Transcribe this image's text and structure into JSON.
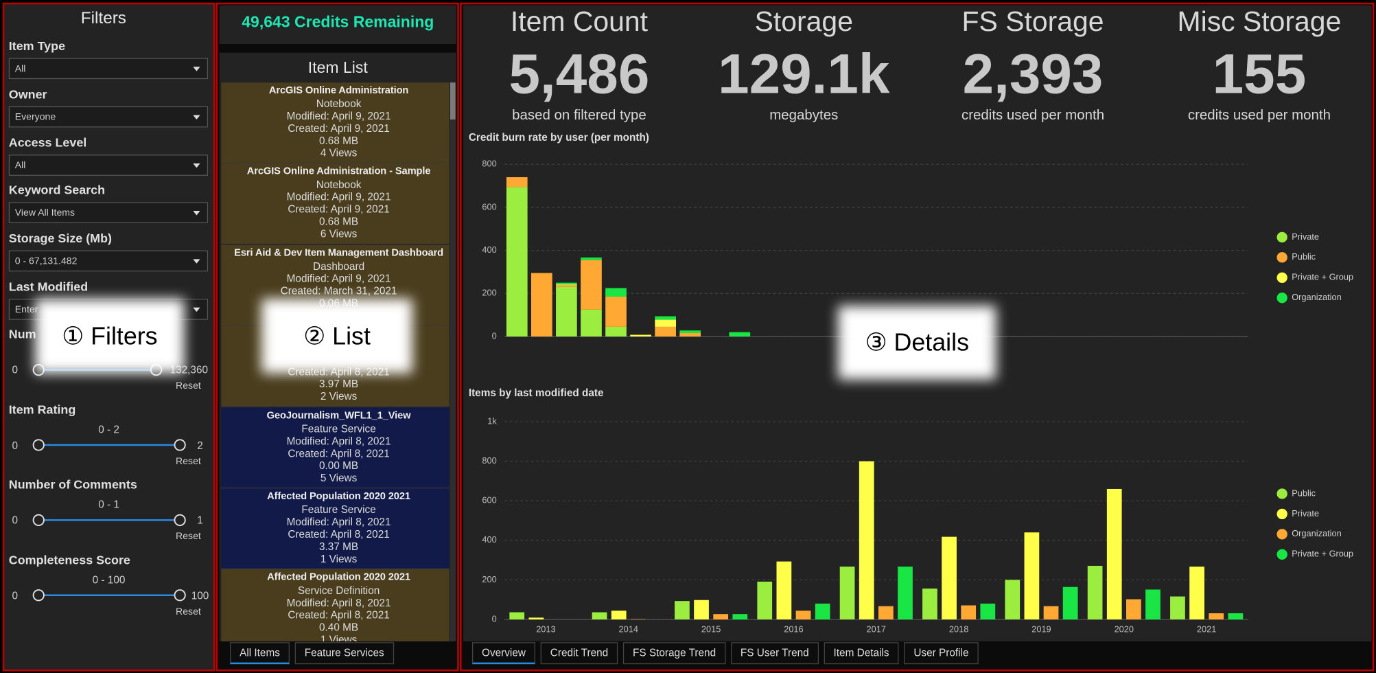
{
  "filters": {
    "title": "Filters",
    "dropdowns": [
      {
        "label": "Item Type",
        "value": "All"
      },
      {
        "label": "Owner",
        "value": "Everyone"
      },
      {
        "label": "Access Level",
        "value": "All"
      },
      {
        "label": "Keyword Search",
        "value": "View All Items"
      },
      {
        "label": "Storage Size (Mb)",
        "value": "0 - 67,131.482"
      },
      {
        "label": "Last Modified",
        "value": "Enter"
      }
    ],
    "sliders": [
      {
        "label": "Num",
        "min": "0",
        "max": "132,360",
        "reset": "Reset"
      },
      {
        "label": "Item Rating",
        "range": "0 - 2",
        "min": "0",
        "max": "2",
        "reset": "Reset"
      },
      {
        "label": "Number of Comments",
        "range": "0 - 1",
        "min": "0",
        "max": "1",
        "reset": "Reset"
      },
      {
        "label": "Completeness Score",
        "range": "0 - 100",
        "min": "0",
        "max": "100",
        "reset": "Reset"
      }
    ]
  },
  "credits": "49,643 Credits Remaining",
  "item_list": {
    "title": "Item List",
    "items": [
      {
        "color": "#4a3d1d",
        "lines": [
          "ArcGIS Online Administration",
          "Notebook",
          "Modified: April 9, 2021",
          "Created: April 9, 2021",
          "0.68 MB",
          "4 Views"
        ]
      },
      {
        "color": "#4a3d1d",
        "lines": [
          "ArcGIS Online Administration - Sample",
          "Notebook",
          "Modified: April 9, 2021",
          "Created: April 9, 2021",
          "0.68 MB",
          "6 Views"
        ]
      },
      {
        "color": "#4a3d1d",
        "lines": [
          "Esri Aid & Dev Item Management Dashboard",
          "Dashboard",
          "Modified: April 9, 2021",
          "Created: March 31, 2021",
          "0.06 MB"
        ]
      },
      {
        "color": "#4a3d1d",
        "lines": [
          "Created: April 8, 2021",
          "3.97 MB",
          "2 Views"
        ]
      },
      {
        "color": "#111a48",
        "lines": [
          "GeoJournalism_WFL1_1_View",
          "Feature Service",
          "Modified: April 8, 2021",
          "Created: April 8, 2021",
          "0.00 MB",
          "5 Views"
        ]
      },
      {
        "color": "#111a48",
        "lines": [
          "Affected Population 2020 2021",
          "Feature Service",
          "Modified: April 8, 2021",
          "Created: April 8, 2021",
          "3.37 MB",
          "1 Views"
        ]
      },
      {
        "color": "#4a3d1d",
        "lines": [
          "Affected Population 2020 2021",
          "Service Definition",
          "Modified: April 8, 2021",
          "Created: April 8, 2021",
          "0.40 MB",
          "1 Views"
        ]
      }
    ],
    "tabs": [
      {
        "label": "All Items",
        "active": true
      },
      {
        "label": "Feature Services",
        "active": false
      }
    ]
  },
  "details": {
    "kpis": [
      {
        "title": "Item Count",
        "value": "5,486",
        "subtitle": "based on filtered type"
      },
      {
        "title": "Storage",
        "value": "129.1k",
        "subtitle": "megabytes"
      },
      {
        "title": "FS Storage",
        "value": "2,393",
        "subtitle": "credits used per month"
      },
      {
        "title": "Misc Storage",
        "value": "155",
        "subtitle": "credits used per month"
      }
    ],
    "tabs": [
      {
        "label": "Overview",
        "active": true
      },
      {
        "label": "Credit Trend",
        "active": false
      },
      {
        "label": "FS Storage Trend",
        "active": false
      },
      {
        "label": "FS User Trend",
        "active": false
      },
      {
        "label": "Item Details",
        "active": false
      },
      {
        "label": "User Profile",
        "active": false
      }
    ]
  },
  "annotations": [
    "① Filters",
    "② List",
    "③ Details"
  ],
  "chart_data": [
    {
      "type": "bar",
      "stacked": true,
      "title": "Credit burn rate by user (per month)",
      "categories": [
        null,
        null,
        null,
        null,
        null,
        null,
        null,
        null,
        null,
        null
      ],
      "series": [
        {
          "name": "Private",
          "color": "#9bee3f",
          "values": [
            695,
            0,
            230,
            125,
            45,
            0,
            0,
            0,
            0,
            0
          ]
        },
        {
          "name": "Public",
          "color": "#ffa834",
          "values": [
            45,
            295,
            8,
            230,
            140,
            0,
            45,
            16,
            0,
            0
          ]
        },
        {
          "name": "Private + Group",
          "color": "#ffff4a",
          "values": [
            0,
            0,
            4,
            0,
            0,
            8,
            33,
            0,
            0,
            0
          ]
        },
        {
          "name": "Organization",
          "color": "#19e645",
          "values": [
            0,
            0,
            8,
            12,
            40,
            0,
            16,
            12,
            0,
            20
          ]
        }
      ],
      "ylim": [
        0,
        800
      ],
      "yticks": [
        0,
        200,
        400,
        600,
        800
      ],
      "grid": true,
      "legend": "right"
    },
    {
      "type": "bar",
      "stacked": false,
      "title": "Items by last modified date",
      "categories": [
        "2013",
        "2014",
        "2015",
        "2016",
        "2017",
        "2018",
        "2019",
        "2020",
        "2021"
      ],
      "series": [
        {
          "name": "Public",
          "color": "#9bee3f",
          "values": [
            36,
            36,
            93,
            191,
            267,
            156,
            200,
            271,
            116
          ]
        },
        {
          "name": "Private",
          "color": "#ffff4a",
          "values": [
            9,
            44,
            98,
            293,
            800,
            418,
            440,
            660,
            267
          ]
        },
        {
          "name": "Organization",
          "color": "#ffa834",
          "values": [
            0,
            2,
            27,
            44,
            67,
            71,
            67,
            102,
            31
          ]
        },
        {
          "name": "Private + Group",
          "color": "#19e645",
          "values": [
            0,
            0,
            27,
            80,
            267,
            80,
            164,
            151,
            31
          ]
        }
      ],
      "ylim": [
        0,
        1000
      ],
      "yticks": [
        0,
        200,
        400,
        600,
        800,
        {
          "value": 1000,
          "label": "1k"
        }
      ],
      "grid": true,
      "legend": "right"
    }
  ]
}
